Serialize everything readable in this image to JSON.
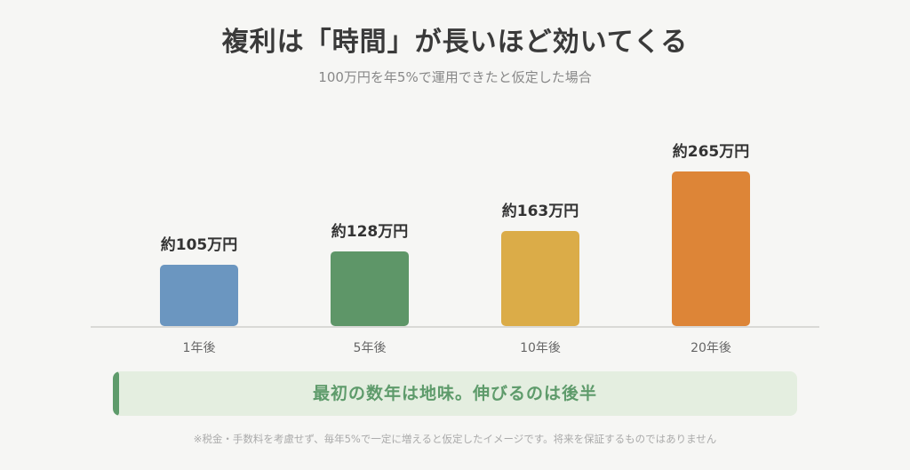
{
  "title": "複利は「時間」が長いほど効いてくる",
  "subtitle": "100万円を年5%で運用できたと仮定した場合",
  "chart_data": {
    "type": "bar",
    "categories": [
      "1年後",
      "5年後",
      "10年後",
      "20年後"
    ],
    "values": [
      105,
      128,
      163,
      265
    ],
    "data_labels": [
      "約105万円",
      "約128万円",
      "約163万円",
      "約265万円"
    ],
    "colors": [
      "#6b96c0",
      "#5e9668",
      "#dbac48",
      "#dd8537"
    ],
    "ylim": [
      0,
      265
    ],
    "grid": false,
    "legend": "none"
  },
  "callout": "最初の数年は地味。伸びるのは後半",
  "footnote": "※税金・手数料を考慮せず、毎年5%で一定に増えると仮定したイメージです。将来を保証するものではありません"
}
